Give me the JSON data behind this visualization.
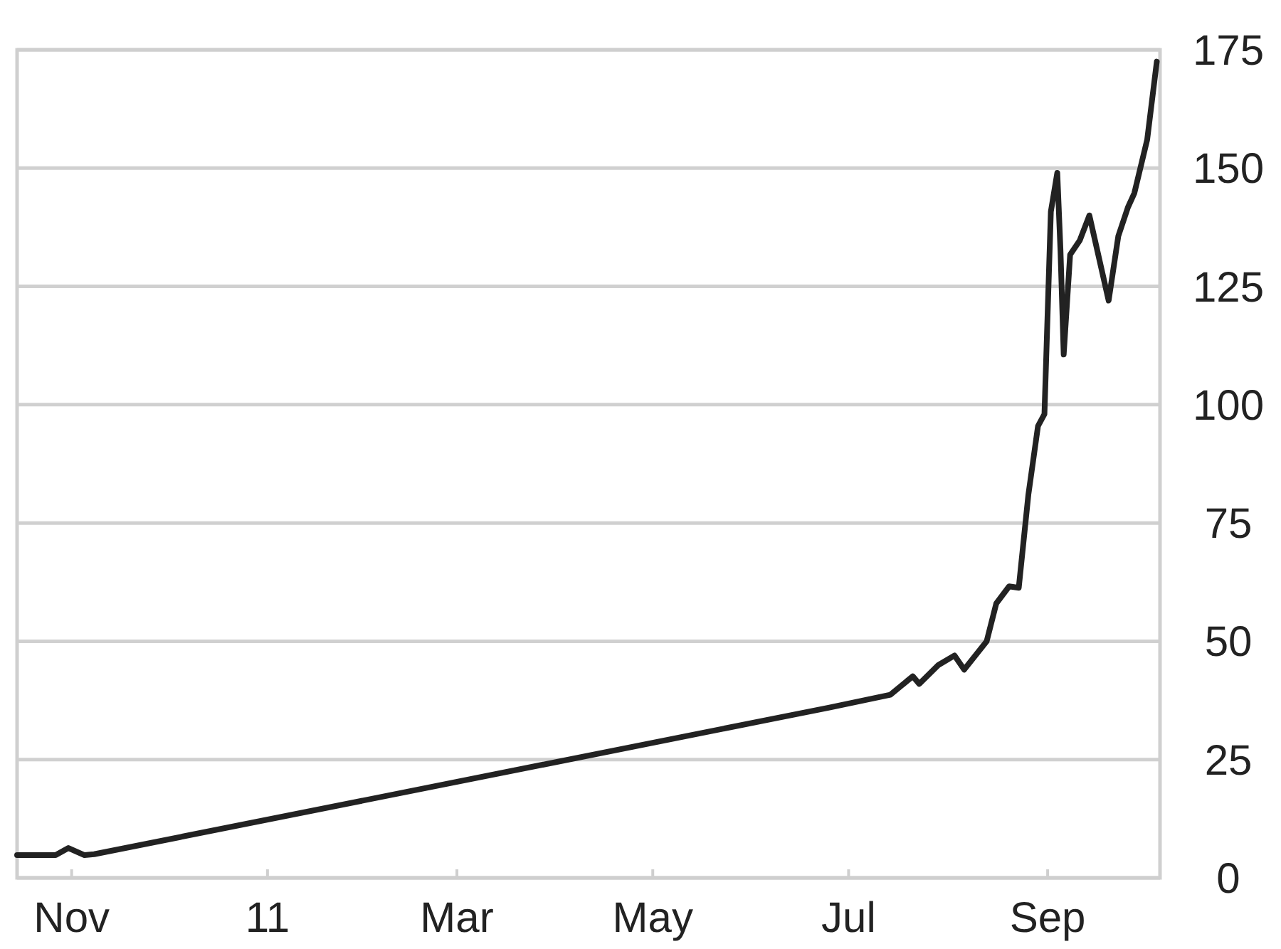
{
  "chart_data": {
    "type": "line",
    "x": [
      "2010-10-15",
      "2010-10-27",
      "2010-10-31",
      "2010-11-05",
      "2010-11-08",
      "2011-06-25",
      "2011-07-14",
      "2011-07-21",
      "2011-07-23",
      "2011-07-29",
      "2011-08-03",
      "2011-08-06",
      "2011-08-13",
      "2011-08-16",
      "2011-08-20",
      "2011-08-23",
      "2011-08-26",
      "2011-08-29",
      "2011-08-31",
      "2011-09-02",
      "2011-09-04",
      "2011-09-05",
      "2011-09-06",
      "2011-09-08",
      "2011-09-11",
      "2011-09-14",
      "2011-09-20",
      "2011-09-23",
      "2011-09-26",
      "2011-09-28",
      "2011-10-02",
      "2011-10-05"
    ],
    "series": [
      {
        "color": "#222222",
        "values": [
          4.8,
          4.8,
          6.3,
          4.8,
          5,
          36,
          38.7,
          42.6,
          41,
          45,
          47,
          44,
          50,
          58,
          61.6,
          61.3,
          81,
          95.5,
          98,
          140.8,
          149,
          132.6,
          110.6,
          131.7,
          134.7,
          140,
          122,
          135.6,
          141.7,
          144.7,
          156,
          172.5
        ]
      }
    ],
    "xlim": [
      "2010-10-15",
      "2011-10-06"
    ],
    "xticks": [
      {
        "value": "2010-11-01",
        "label": "Nov"
      },
      {
        "value": "2011-01-01",
        "label": "11"
      },
      {
        "value": "2011-03-01",
        "label": "Mar"
      },
      {
        "value": "2011-05-01",
        "label": "May"
      },
      {
        "value": "2011-07-01",
        "label": "Jul"
      },
      {
        "value": "2011-09-01",
        "label": "Sep"
      }
    ],
    "ylim": [
      0,
      175
    ],
    "yticks": [
      0,
      25,
      50,
      75,
      100,
      125,
      150,
      175
    ],
    "grid": "y",
    "marker": "none",
    "line_style": "solid"
  }
}
